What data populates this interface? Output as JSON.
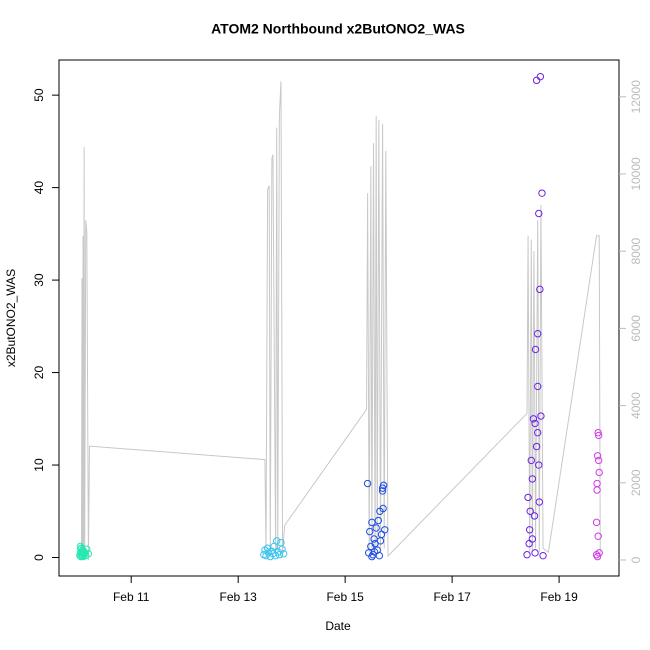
{
  "chart_data": {
    "type": "scatter",
    "title": "ATOM2 Northbound x2ButONO2_WAS",
    "x_label": "Date",
    "y_label": "x2ButONO2_WAS",
    "xlim": [
      9.65,
      20.12
    ],
    "xticks": [
      {
        "value": 11,
        "label": "Feb 11"
      },
      {
        "value": 13,
        "label": "Feb 13"
      },
      {
        "value": 15,
        "label": "Feb 15"
      },
      {
        "value": 17,
        "label": "Feb 17"
      },
      {
        "value": 19,
        "label": "Feb 19"
      }
    ],
    "ylim": [
      -2.0,
      53.8
    ],
    "yticks": [
      0,
      10,
      20,
      30,
      40,
      50
    ],
    "y2lim": [
      -415,
      12953
    ],
    "y2ticks": [
      0,
      2000,
      4000,
      6000,
      8000,
      10000,
      12000
    ],
    "y2_color": "#bbbbbb",
    "series": [
      {
        "color": "#24e9b0",
        "x": [
          10.04,
          10.05,
          10.05,
          10.06,
          10.06,
          10.07,
          10.07,
          10.08,
          10.08,
          10.09,
          10.1,
          10.1,
          10.11,
          10.12,
          10.13,
          10.15,
          10.17,
          10.2
        ],
        "values": [
          0.2,
          1.2,
          0.5,
          0.9,
          0.1,
          0.3,
          1.0,
          0.6,
          0.2,
          0.8,
          0.4,
          0.1,
          0.7,
          0.3,
          0.5,
          0.2,
          0.9,
          0.4
        ]
      },
      {
        "color": "#3bc4ef",
        "x": [
          13.48,
          13.5,
          13.52,
          13.55,
          13.57,
          13.6,
          13.62,
          13.65,
          13.67,
          13.7,
          13.72,
          13.75,
          13.77,
          13.8,
          13.82,
          13.85
        ],
        "values": [
          0.3,
          0.8,
          0.2,
          1.0,
          0.5,
          0.1,
          0.7,
          0.4,
          1.2,
          0.2,
          1.8,
          0.6,
          0.3,
          1.6,
          0.9,
          0.4
        ]
      },
      {
        "color": "#1f4ee6",
        "x": [
          15.42,
          15.44,
          15.46,
          15.48,
          15.5,
          15.52,
          15.54,
          15.56,
          15.58,
          15.6,
          15.62,
          15.64,
          15.66,
          15.68,
          15.7,
          15.72,
          15.74,
          15.5,
          15.55,
          15.65,
          15.7,
          15.71
        ],
        "values": [
          8.0,
          0.5,
          2.8,
          1.2,
          3.8,
          0.3,
          2.0,
          1.5,
          3.2,
          0.8,
          4.0,
          0.2,
          1.8,
          2.5,
          7.5,
          7.8,
          3.0,
          0.1,
          0.6,
          5.0,
          7.2,
          5.3
        ]
      },
      {
        "color": "#6d22e6",
        "x": [
          18.4,
          18.42,
          18.44,
          18.46,
          18.48,
          18.5,
          18.52,
          18.54,
          18.56,
          18.58,
          18.6,
          18.62,
          18.64,
          18.66,
          18.68,
          18.45,
          18.5,
          18.55,
          18.6,
          18.65,
          18.58,
          18.62,
          18.63,
          18.6,
          18.55,
          18.7
        ],
        "values": [
          0.3,
          6.5,
          1.5,
          5.0,
          10.5,
          2.0,
          15.0,
          4.5,
          22.5,
          51.6,
          24.2,
          37.2,
          29.0,
          15.3,
          39.4,
          3.0,
          8.5,
          0.5,
          13.5,
          52,
          12.0,
          10.0,
          6.0,
          18.5,
          14.5,
          0.2
        ]
      },
      {
        "color": "#d33be6",
        "x": [
          19.7,
          19.7,
          19.71,
          19.71,
          19.72,
          19.72,
          19.73,
          19.73,
          19.74,
          19.74,
          19.75,
          19.75
        ],
        "values": [
          0.3,
          3.8,
          7.3,
          8.0,
          0.1,
          11.0,
          13.5,
          2.3,
          10.5,
          13.2,
          0.5,
          9.2
        ]
      },
      {
        "type": "line",
        "axis": "y2",
        "color": "#c8c8c8",
        "x": [
          10.07,
          10.08,
          10.09,
          10.1,
          10.11,
          10.12,
          10.13,
          10.15,
          10.17,
          10.2,
          10.22,
          13.5,
          13.52,
          13.55,
          13.58,
          13.6,
          13.63,
          13.65,
          13.7,
          13.72,
          13.74,
          13.77,
          13.8,
          13.83,
          13.87,
          15.4,
          15.42,
          15.45,
          15.48,
          15.5,
          15.53,
          15.56,
          15.58,
          15.6,
          15.63,
          15.66,
          15.7,
          15.73,
          15.76,
          15.8,
          18.4,
          18.42,
          18.45,
          18.48,
          18.5,
          18.53,
          18.56,
          18.6,
          18.63,
          18.66,
          18.7,
          18.8,
          19.7,
          19.75,
          19.77
        ],
        "values": [
          0,
          7300,
          0,
          8400,
          0,
          10700,
          200,
          8800,
          8500,
          0,
          2950,
          2600,
          200,
          9600,
          9700,
          200,
          10400,
          10500,
          200,
          11200,
          200,
          11500,
          12400,
          200,
          900,
          3900,
          9500,
          200,
          10200,
          300,
          10800,
          200,
          11500,
          300,
          11400,
          200,
          11300,
          300,
          10600,
          100,
          3800,
          8400,
          200,
          8300,
          200,
          8000,
          300,
          8800,
          200,
          9200,
          300,
          200,
          8400,
          8400,
          100
        ]
      }
    ]
  }
}
